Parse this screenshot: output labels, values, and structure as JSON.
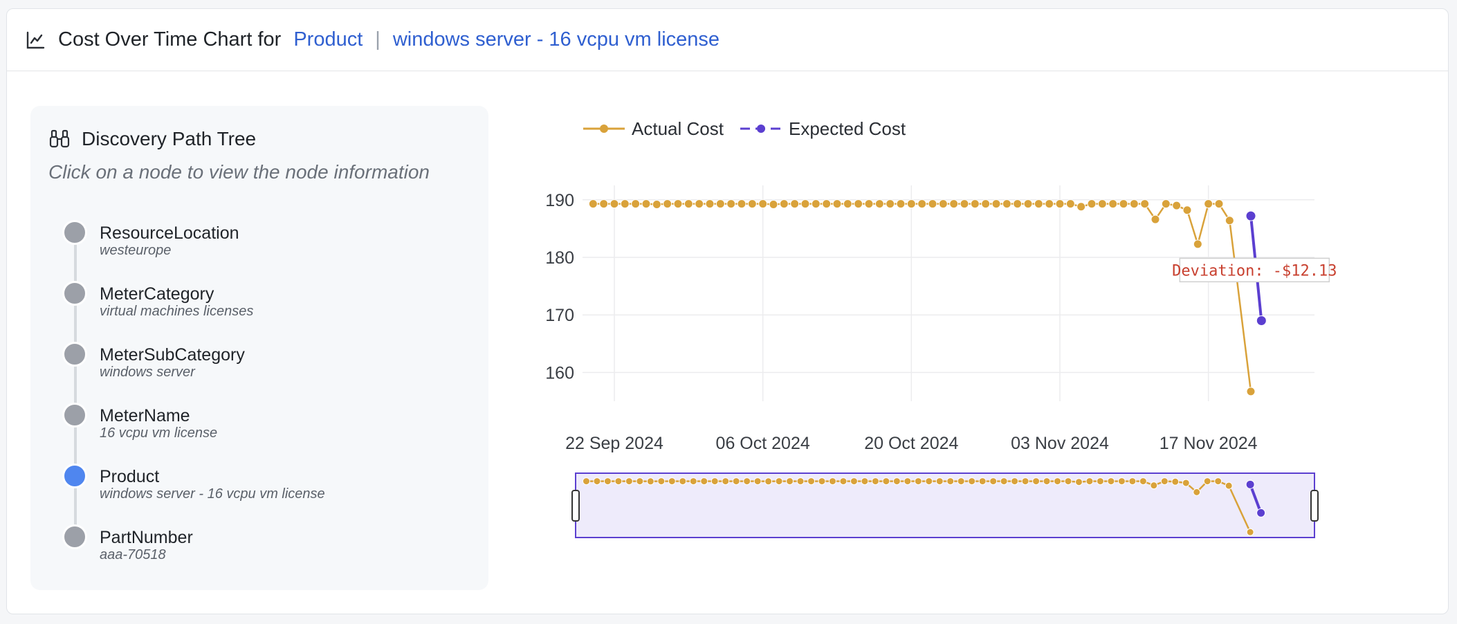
{
  "header": {
    "title": "Cost Over Time Chart for",
    "crumb_product": "Product",
    "separator": "|",
    "crumb_value": "windows server - 16 vcpu vm license"
  },
  "tree": {
    "title": "Discovery Path Tree",
    "hint": "Click on a node to view the node information",
    "nodes": [
      {
        "title": "ResourceLocation",
        "sub": "westeurope",
        "active": false
      },
      {
        "title": "MeterCategory",
        "sub": "virtual machines licenses",
        "active": false
      },
      {
        "title": "MeterSubCategory",
        "sub": "windows server",
        "active": false
      },
      {
        "title": "MeterName",
        "sub": "16 vcpu vm license",
        "active": false
      },
      {
        "title": "Product",
        "sub": "windows server - 16 vcpu vm license",
        "active": true
      },
      {
        "title": "PartNumber",
        "sub": "aaa-70518",
        "active": false
      }
    ]
  },
  "colors": {
    "actual": "#d9a23a",
    "expected": "#5b3fd0",
    "active_node": "#4f86ef",
    "node": "#9ca0a8",
    "annotation": "#c8402f",
    "link": "#2f5fd0"
  },
  "chart_data": {
    "type": "line",
    "x_type": "date",
    "legend": [
      "Actual Cost",
      "Expected Cost"
    ],
    "legend_position": "top-left",
    "grid": true,
    "ylim": [
      155,
      192.5
    ],
    "yticks": [
      160,
      170,
      180,
      190
    ],
    "xticks": [
      "22 Sep 2024",
      "06 Oct 2024",
      "20 Oct 2024",
      "03 Nov 2024",
      "17 Nov 2024"
    ],
    "xtick_dates": [
      "2024-09-22",
      "2024-10-06",
      "2024-10-20",
      "2024-11-03",
      "2024-11-17"
    ],
    "xlim": [
      "2024-09-19",
      "2024-11-27"
    ],
    "series": [
      {
        "name": "Actual Cost",
        "start_date": "2024-09-20",
        "values": [
          189.3,
          189.3,
          189.3,
          189.3,
          189.3,
          189.3,
          189.2,
          189.3,
          189.3,
          189.3,
          189.3,
          189.3,
          189.3,
          189.3,
          189.3,
          189.3,
          189.3,
          189.2,
          189.3,
          189.3,
          189.3,
          189.3,
          189.3,
          189.3,
          189.3,
          189.3,
          189.3,
          189.3,
          189.3,
          189.3,
          189.3,
          189.3,
          189.3,
          189.3,
          189.3,
          189.3,
          189.3,
          189.3,
          189.3,
          189.3,
          189.3,
          189.3,
          189.3,
          189.3,
          189.3,
          189.3,
          188.8,
          189.3,
          189.3,
          189.3,
          189.3,
          189.3,
          189.3,
          186.6,
          189.3,
          189.0,
          188.2,
          182.3,
          189.3,
          189.3,
          186.4,
          null,
          156.7
        ]
      },
      {
        "name": "Expected Cost",
        "points": [
          {
            "date": "2024-11-21",
            "value": 187.2
          },
          {
            "date": "2024-11-22",
            "value": 169.0
          }
        ]
      }
    ],
    "annotations": [
      {
        "text": "Deviation: -$12.13",
        "date": "2024-11-22",
        "value": 177.8
      }
    ],
    "range_slider": true
  }
}
